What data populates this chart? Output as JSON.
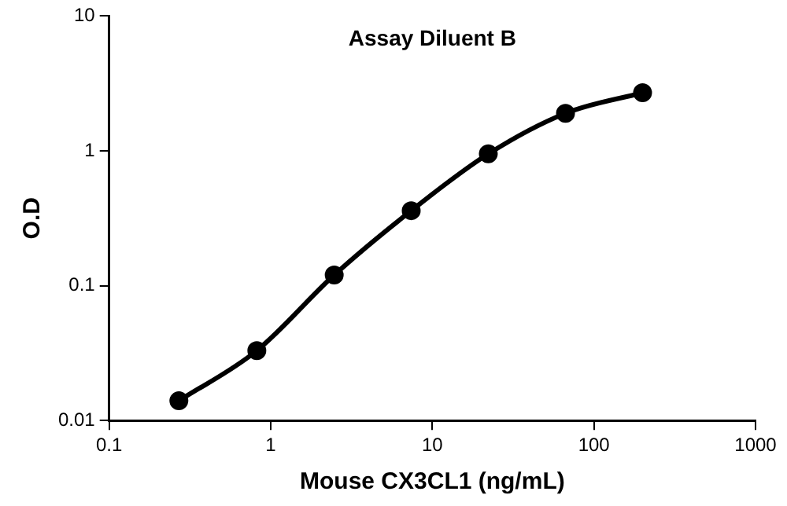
{
  "chart_data": {
    "type": "line",
    "title": "Assay Diluent B",
    "xlabel": "Mouse CX3CL1 (ng/mL)",
    "ylabel": "O.D",
    "x": [
      0.27,
      0.82,
      2.47,
      7.4,
      22.2,
      66.7,
      200
    ],
    "series": [
      {
        "color": "#000000",
        "values": [
          0.014,
          0.033,
          0.12,
          0.36,
          0.95,
          1.9,
          2.7
        ]
      }
    ],
    "xlim": [
      0.1,
      1000
    ],
    "xticks": [
      0.1,
      1,
      10,
      100,
      1000
    ],
    "ylim": [
      0.01,
      10
    ],
    "yticks": [
      0.01,
      0.1,
      1,
      10
    ],
    "log": "xy",
    "grid": false,
    "legend": false,
    "marker": "circle",
    "line_style": "solid"
  }
}
